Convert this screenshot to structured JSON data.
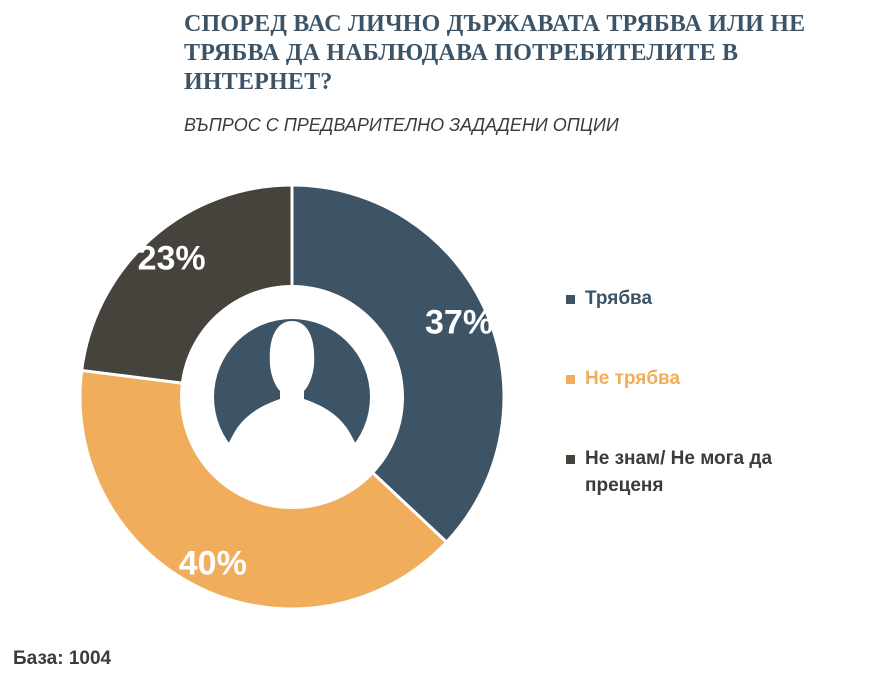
{
  "title": "СПОРЕД ВАС ЛИЧНО ДЪРЖАВАТА ТРЯБВА ИЛИ НЕ ТРЯБВА ДА НАБЛЮДАВА ПОТРЕБИТЕЛИТЕ В ИНТЕРНЕТ?",
  "subtitle": "ВЪПРОС С ПРЕДВАРИТЕЛНО ЗАДАДЕНИ ОПЦИИ",
  "base_label": "База: 1004",
  "center_icon": "person-silhouette-icon",
  "chart_data": {
    "type": "pie",
    "style": "donut",
    "title": "СПОРЕД ВАС ЛИЧНО ДЪРЖАВАТА ТРЯБВА ИЛИ НЕ ТРЯБВА ДА НАБЛЮДАВА ПОТРЕБИТЕЛИТЕ В ИНТЕРНЕТ?",
    "subtitle": "ВЪПРОС С ПРЕДВАРИТЕЛНО ЗАДАДЕНИ ОПЦИИ",
    "unit": "%",
    "legend_position": "right",
    "slices": [
      {
        "label": "Трябва",
        "value": 37,
        "display": "37%",
        "color": "#3d5366",
        "legend_text_color": "#3d5366"
      },
      {
        "label": "Не трябва",
        "value": 40,
        "display": "40%",
        "color": "#f0ad5c",
        "legend_text_color": "#f0ad5c"
      },
      {
        "label": "Не знам/ Не мога да преценя",
        "value": 23,
        "display": "23%",
        "color": "#46423c",
        "legend_text_color": "#3b3b3b"
      }
    ]
  }
}
